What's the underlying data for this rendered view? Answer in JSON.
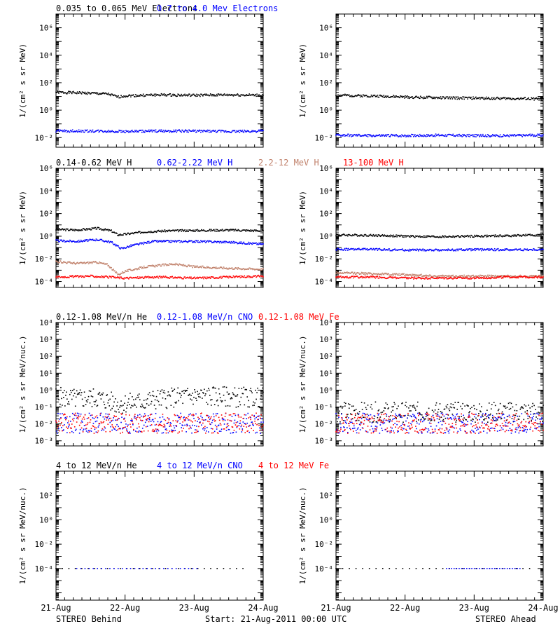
{
  "footer": {
    "left": "STEREO Behind",
    "center": "Start: 21-Aug-2011 00:00 UTC",
    "right": "STEREO Ahead"
  },
  "x_axis": {
    "ticks": [
      "21-Aug",
      "22-Aug",
      "23-Aug",
      "24-Aug"
    ],
    "range_days": [
      0,
      3
    ]
  },
  "colors": {
    "black": "#000000",
    "blue": "#0000ff",
    "tan": "#c0806a",
    "red": "#ff0000",
    "axis": "#000000"
  },
  "chart_data": [
    {
      "type": "scatter",
      "row": 1,
      "column": "left",
      "spacecraft": "STEREO Behind",
      "ylabel": "1/(cm² s sr MeV)",
      "yscale": "log",
      "ylim": [
        0.002,
        10000000
      ],
      "ytick_exponents": [
        -2,
        0,
        2,
        4,
        6
      ],
      "x": [
        "21-Aug",
        "22-Aug",
        "23-Aug",
        "24-Aug"
      ],
      "series": [
        {
          "name": "0.035 to 0.065 MeV Electrons",
          "color": "black",
          "x": [
            0,
            0.4,
            0.75,
            0.9,
            1.0,
            1.5,
            2.0,
            2.5,
            3.0
          ],
          "y": [
            20,
            18,
            15,
            9,
            11,
            13,
            12,
            13,
            12
          ]
        },
        {
          "name": "0.7 to 4.0 Mev Electrons",
          "color": "blue",
          "x": [
            0,
            0.5,
            1.0,
            1.5,
            2.0,
            2.5,
            3.0
          ],
          "y": [
            0.03,
            0.03,
            0.028,
            0.03,
            0.03,
            0.028,
            0.03
          ]
        }
      ]
    },
    {
      "type": "scatter",
      "row": 1,
      "column": "right",
      "spacecraft": "STEREO Ahead",
      "ylabel": "1/(cm² s sr MeV)",
      "yscale": "log",
      "ylim": [
        0.002,
        10000000
      ],
      "ytick_exponents": [
        -2,
        0,
        2,
        4,
        6
      ],
      "series": [
        {
          "name": "0.035 to 0.065 MeV Electrons",
          "color": "black",
          "x": [
            0,
            0.5,
            1.0,
            1.5,
            2.0,
            2.5,
            3.0
          ],
          "y": [
            12,
            11,
            9,
            8,
            7.5,
            7,
            6.5
          ]
        },
        {
          "name": "0.7 to 4.0 Mev Electrons",
          "color": "blue",
          "x": [
            0,
            0.5,
            1.0,
            1.5,
            2.0,
            2.5,
            3.0
          ],
          "y": [
            0.015,
            0.014,
            0.014,
            0.015,
            0.014,
            0.014,
            0.015
          ]
        }
      ]
    },
    {
      "type": "scatter",
      "row": 2,
      "column": "left",
      "spacecraft": "STEREO Behind",
      "ylabel": "1/(cm² s sr MeV)",
      "yscale": "log",
      "ylim": [
        3e-05,
        1000000
      ],
      "ytick_exponents": [
        -4,
        -2,
        0,
        2,
        4,
        6
      ],
      "series": [
        {
          "name": "0.14-0.62 MeV H",
          "color": "black",
          "x": [
            0,
            0.3,
            0.6,
            0.8,
            0.9,
            1.0,
            1.3,
            1.6,
            2.0,
            2.5,
            3.0
          ],
          "y": [
            4,
            3.5,
            5,
            3,
            1.3,
            1.5,
            2.5,
            3,
            3.2,
            3.5,
            3
          ]
        },
        {
          "name": "0.62-2.22 MeV H",
          "color": "blue",
          "x": [
            0,
            0.3,
            0.6,
            0.8,
            0.95,
            1.1,
            1.4,
            2.0,
            2.5,
            3.0
          ],
          "y": [
            0.4,
            0.35,
            0.5,
            0.3,
            0.08,
            0.15,
            0.35,
            0.35,
            0.3,
            0.2
          ]
        },
        {
          "name": "2.2-12 MeV H",
          "color": "tan",
          "x": [
            0,
            0.3,
            0.6,
            0.75,
            0.9,
            1.0,
            1.3,
            1.7,
            2.0,
            2.5,
            3.0
          ],
          "y": [
            0.006,
            0.004,
            0.005,
            0.003,
            0.0004,
            0.0008,
            0.002,
            0.0035,
            0.002,
            0.0015,
            0.0012
          ]
        },
        {
          "name": "13-100 MeV H",
          "color": "red",
          "x": [
            0,
            0.5,
            1.0,
            1.5,
            2.0,
            2.5,
            3.0
          ],
          "y": [
            0.00025,
            0.0003,
            0.0002,
            0.00025,
            0.0002,
            0.00025,
            0.0003
          ]
        }
      ]
    },
    {
      "type": "scatter",
      "row": 2,
      "column": "right",
      "spacecraft": "STEREO Ahead",
      "ylabel": "1/(cm² s sr MeV)",
      "yscale": "log",
      "ylim": [
        3e-05,
        1000000
      ],
      "ytick_exponents": [
        -4,
        -2,
        0,
        2,
        4,
        6
      ],
      "series": [
        {
          "name": "0.14-0.62 MeV H",
          "color": "black",
          "x": [
            0,
            0.5,
            1.0,
            1.5,
            2.0,
            2.5,
            3.0
          ],
          "y": [
            1.3,
            1.2,
            1.0,
            0.9,
            1.0,
            1.1,
            1.3
          ]
        },
        {
          "name": "0.62-2.22 MeV H",
          "color": "blue",
          "x": [
            0,
            0.5,
            1.0,
            1.5,
            2.0,
            2.5,
            3.0
          ],
          "y": [
            0.07,
            0.07,
            0.06,
            0.06,
            0.065,
            0.065,
            0.065
          ]
        },
        {
          "name": "2.2-12 MeV H",
          "color": "tan",
          "x": [
            0,
            0.5,
            1.0,
            1.5,
            2.0,
            2.5,
            3.0
          ],
          "y": [
            0.0006,
            0.0005,
            0.0004,
            0.0003,
            0.0003,
            0.0003,
            0.0003
          ]
        },
        {
          "name": "13-100 MeV H",
          "color": "red",
          "x": [
            0,
            0.5,
            1.0,
            1.5,
            2.0,
            2.5,
            3.0
          ],
          "y": [
            0.00025,
            0.00025,
            0.0002,
            0.0002,
            0.0002,
            0.00025,
            0.00025
          ]
        }
      ]
    },
    {
      "type": "scatter",
      "row": 3,
      "column": "left",
      "spacecraft": "STEREO Behind",
      "ylabel": "1/(cm² s sr MeV/nuc.)",
      "yscale": "log",
      "ylim": [
        0.0005,
        10000
      ],
      "ytick_exponents": [
        -3,
        -2,
        -1,
        0,
        1,
        2,
        3,
        4
      ],
      "series": [
        {
          "name": "0.12-1.08 MeV/n He",
          "color": "black",
          "x": [
            0,
            0.3,
            0.6,
            0.9,
            1.2,
            1.5,
            2.0,
            2.5,
            3.0
          ],
          "y": [
            0.4,
            0.3,
            0.35,
            0.15,
            0.2,
            0.3,
            0.45,
            0.4,
            0.35
          ]
        },
        {
          "name": "0.12-1.08 MeV/n CNO",
          "color": "blue",
          "x": [
            0,
            1.0,
            2.0,
            3.0
          ],
          "y": [
            0.011,
            0.011,
            0.011,
            0.011
          ]
        },
        {
          "name": "0.12-1.08 MeV Fe",
          "color": "red",
          "x": [
            0,
            1.0,
            2.0,
            3.0
          ],
          "y": [
            0.011,
            0.011,
            0.011,
            0.011
          ]
        }
      ]
    },
    {
      "type": "scatter",
      "row": 3,
      "column": "right",
      "spacecraft": "STEREO Ahead",
      "ylabel": "1/(cm² s sr MeV/nuc.)",
      "yscale": "log",
      "ylim": [
        0.0005,
        10000
      ],
      "ytick_exponents": [
        -3,
        -2,
        -1,
        0,
        1,
        2,
        3,
        4
      ],
      "series": [
        {
          "name": "0.12-1.08 MeV/n He",
          "color": "black",
          "x": [
            0,
            1.0,
            2.0,
            3.0
          ],
          "y": [
            0.05,
            0.05,
            0.05,
            0.05
          ]
        },
        {
          "name": "0.12-1.08 MeV/n CNO",
          "color": "blue",
          "x": [
            0,
            1.0,
            2.0,
            3.0
          ],
          "y": [
            0.011,
            0.011,
            0.011,
            0.011
          ]
        },
        {
          "name": "0.12-1.08 MeV Fe",
          "color": "red",
          "x": [
            0,
            1.0,
            2.0,
            3.0
          ],
          "y": [
            0.011,
            0.011,
            0.011,
            0.011
          ]
        }
      ]
    },
    {
      "type": "scatter",
      "row": 4,
      "column": "left",
      "spacecraft": "STEREO Behind",
      "ylabel": "1/(cm² s sr MeV/nuc.)",
      "yscale": "log",
      "ylim": [
        2.5e-07,
        10000
      ],
      "ytick_exponents": [
        -4,
        -2,
        0,
        2
      ],
      "series": [
        {
          "name": "4 to 12 MeV/n He",
          "color": "black",
          "x": [
            0,
            0.5,
            1.0,
            1.5,
            2.0,
            2.5,
            2.8
          ],
          "y": [
            0.0001,
            0.0001,
            0.0001,
            0.0001,
            0.0001,
            0.0001,
            0.0001
          ]
        },
        {
          "name": "4 to 12 MeV/n CNO",
          "color": "blue",
          "x": [
            0.3,
            1.2,
            2.1
          ],
          "y": [
            0.0001,
            0.0001,
            0.0001
          ]
        },
        {
          "name": "4 to 12 MeV Fe",
          "color": "red",
          "x": [],
          "y": []
        }
      ]
    },
    {
      "type": "scatter",
      "row": 4,
      "column": "right",
      "spacecraft": "STEREO Ahead",
      "ylabel": "1/(cm² s sr MeV/nuc.)",
      "yscale": "log",
      "ylim": [
        2.5e-07,
        10000
      ],
      "ytick_exponents": [
        -4,
        -2,
        0,
        2
      ],
      "series": [
        {
          "name": "4 to 12 MeV/n He",
          "color": "black",
          "x": [
            0,
            0.5,
            1.0,
            1.5,
            2.0,
            2.5,
            2.9
          ],
          "y": [
            0.0001,
            0.0001,
            0.0001,
            0.0001,
            0.0001,
            0.0001,
            0.0001
          ]
        },
        {
          "name": "4 to 12 MeV/n CNO",
          "color": "blue",
          "x": [
            1.6,
            2.7
          ],
          "y": [
            0.0001,
            0.0001
          ]
        },
        {
          "name": "4 to 12 MeV Fe",
          "color": "red",
          "x": [],
          "y": []
        }
      ]
    }
  ]
}
